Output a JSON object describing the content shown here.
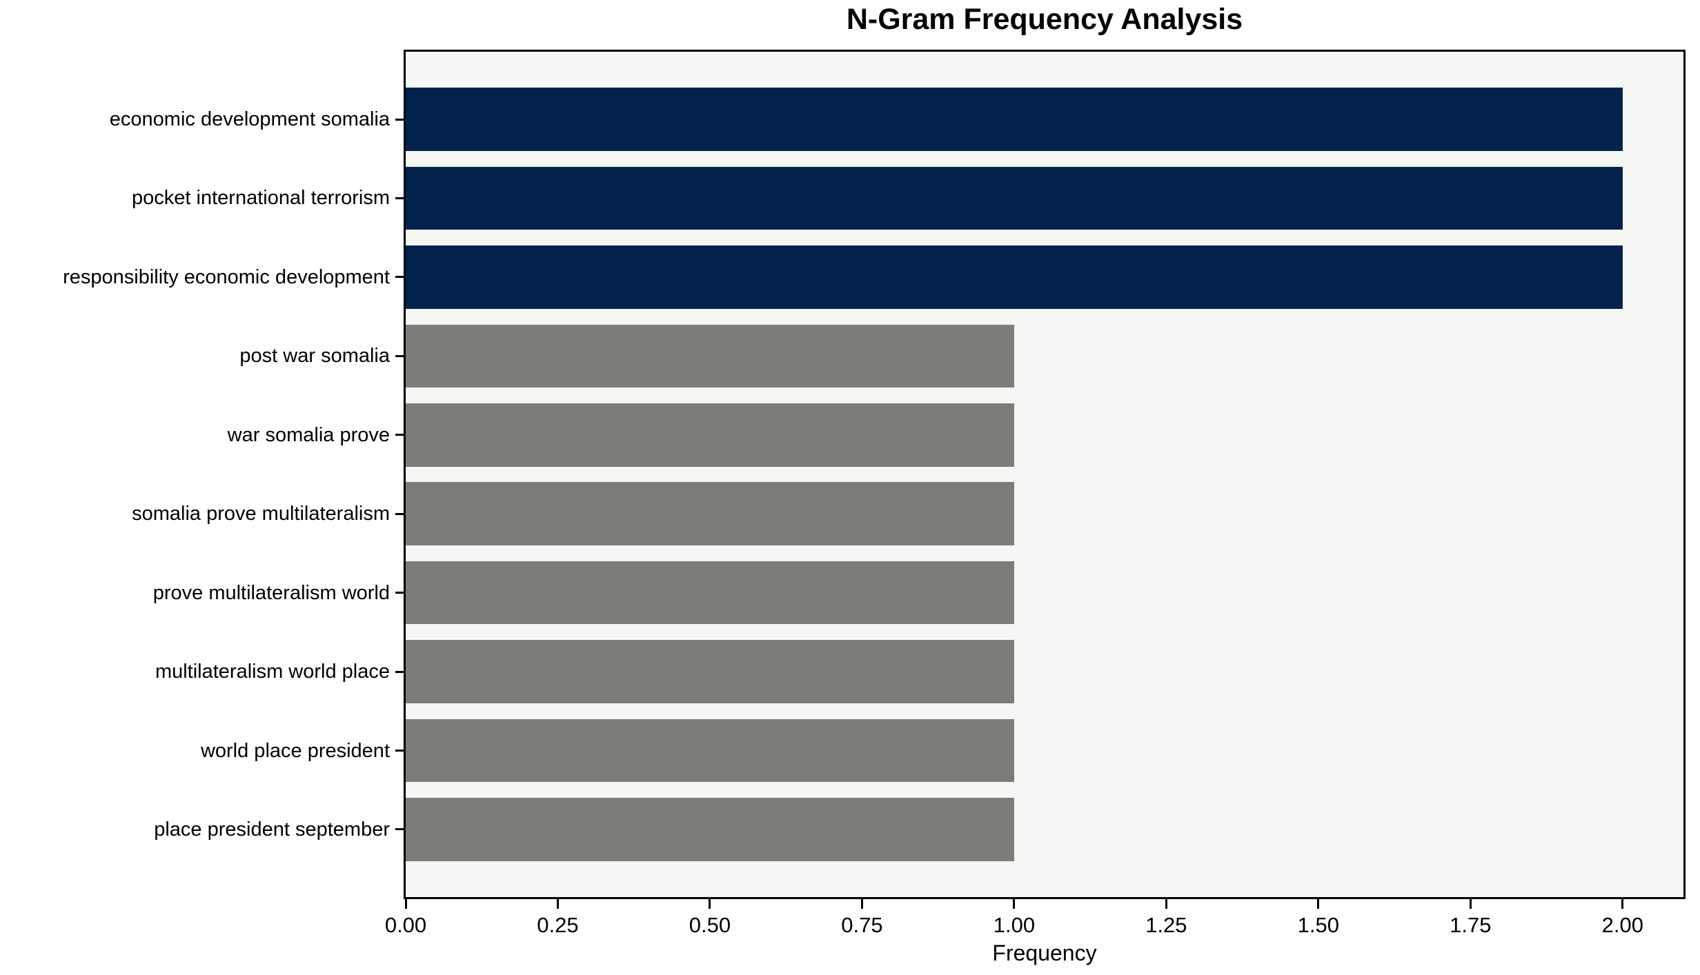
{
  "chart_data": {
    "type": "bar",
    "orientation": "horizontal",
    "title": "N-Gram Frequency Analysis",
    "xlabel": "Frequency",
    "ylabel": "",
    "categories": [
      "economic development somalia",
      "pocket international terrorism",
      "responsibility economic development",
      "post war somalia",
      "war somalia prove",
      "somalia prove multilateralism",
      "prove multilateralism world",
      "multilateralism world place",
      "world place president",
      "place president september"
    ],
    "values": [
      2,
      2,
      2,
      1,
      1,
      1,
      1,
      1,
      1,
      1
    ],
    "bar_colors": [
      "#03234D",
      "#03234D",
      "#03234D",
      "#7C7C79",
      "#7C7C79",
      "#7C7C79",
      "#7C7C79",
      "#7C7C79",
      "#7C7C79",
      "#7C7C79"
    ],
    "highlight_color": "#03234D",
    "default_color": "#7C7C79",
    "plot_background": "#F6F6F5",
    "spine_color": "#000000",
    "xlim": [
      0,
      2.1
    ],
    "xticks": [
      0,
      0.25,
      0.5,
      0.75,
      1.0,
      1.25,
      1.5,
      1.75,
      2.0
    ],
    "xtick_labels": [
      "0.00",
      "0.25",
      "0.50",
      "0.75",
      "1.00",
      "1.25",
      "1.50",
      "1.75",
      "2.00"
    ],
    "grid": false,
    "legend_position": "none"
  }
}
